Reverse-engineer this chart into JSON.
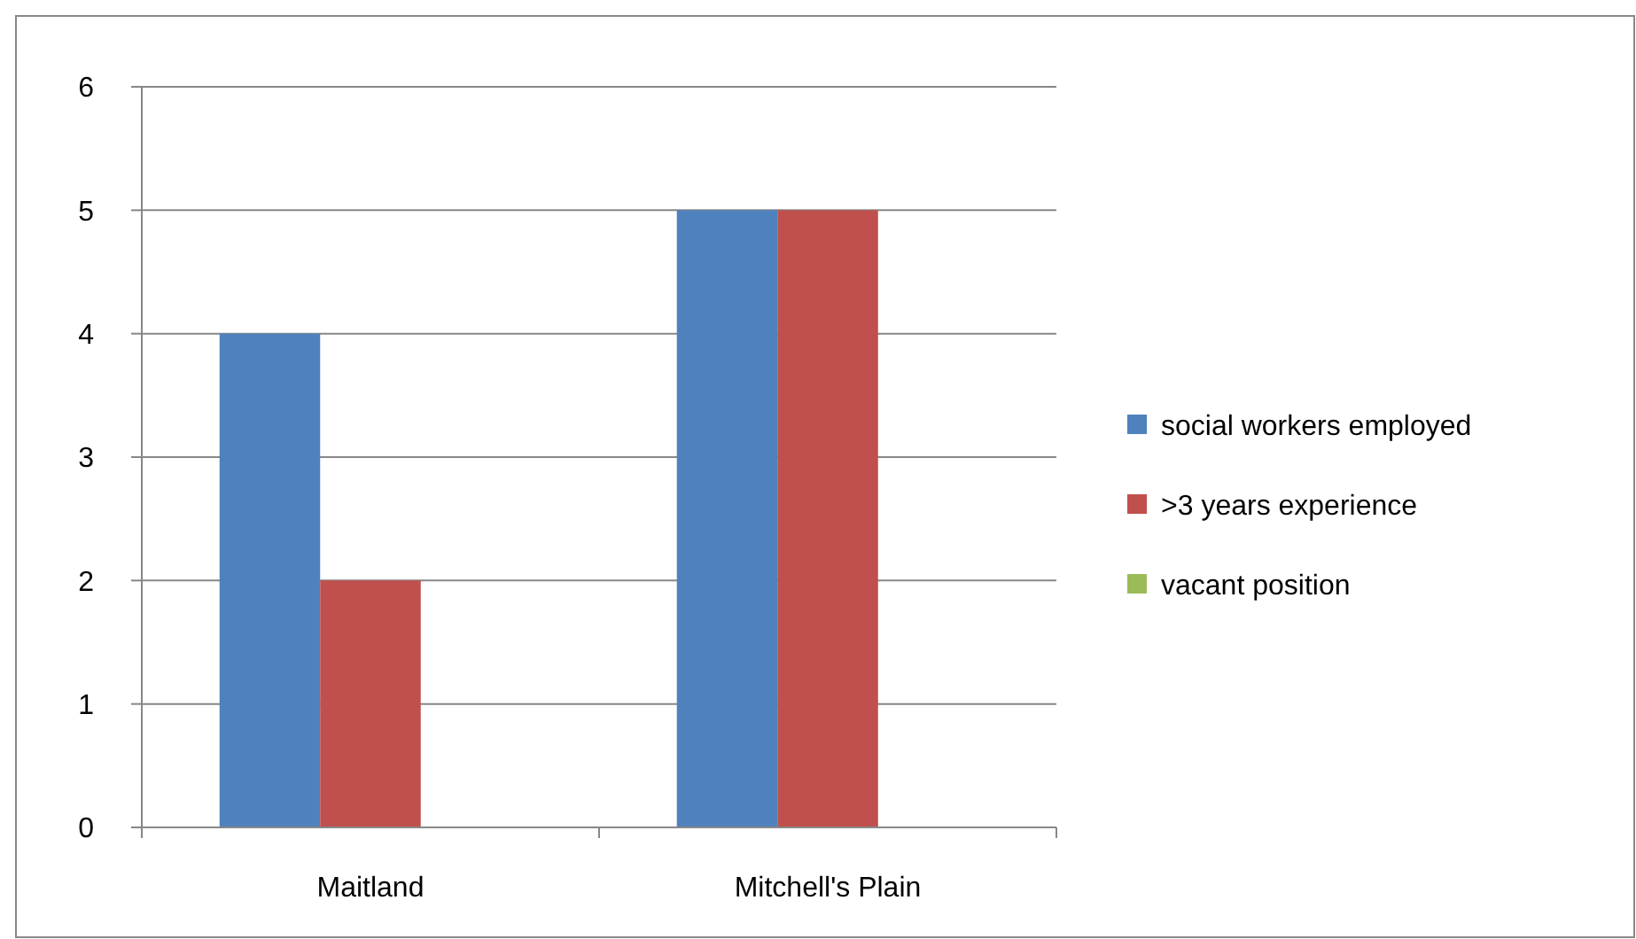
{
  "chart_data": {
    "type": "bar",
    "categories": [
      "Maitland",
      "Mitchell's Plain"
    ],
    "series": [
      {
        "name": "social workers employed",
        "color": "#4f81bd",
        "values": [
          4,
          5
        ]
      },
      {
        "name": ">3 years experience",
        "color": "#c0504d",
        "values": [
          2,
          5
        ]
      },
      {
        "name": "vacant position",
        "color": "#9bbb59",
        "values": [
          0,
          0
        ]
      }
    ],
    "ylim": [
      0,
      6
    ],
    "yticks": [
      0,
      1,
      2,
      3,
      4,
      5,
      6
    ],
    "grid": "y",
    "legend": "right"
  }
}
